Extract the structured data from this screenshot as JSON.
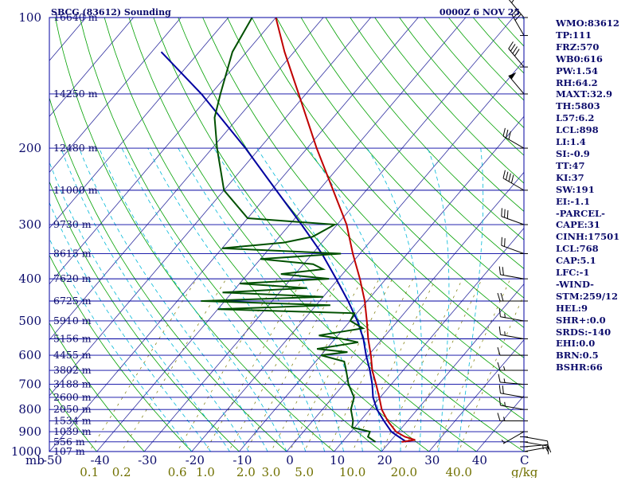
{
  "header": {
    "station": "SBCG (83612) Sounding",
    "datetime": "0000Z  6 NOV 25"
  },
  "chart_data": {
    "type": "line",
    "title": "SBCG (83612) Sounding",
    "subtitle": "0000Z  6 NOV 25",
    "pressure_unit_label": "mb",
    "temperature_unit_label": "C",
    "mixing_ratio_unit_label": "g/kg",
    "ylim": [
      1000,
      100
    ],
    "xlim": [
      -50,
      50
    ],
    "pressure_ticks": [
      100,
      200,
      300,
      400,
      500,
      600,
      700,
      800,
      900,
      1000
    ],
    "temperature_ticks": [
      -50,
      -40,
      -30,
      -20,
      -10,
      0,
      10,
      20,
      30,
      40
    ],
    "mixing_ratio_ticks": [
      "0.1",
      "0.2",
      "0.6",
      "1.0",
      "2.0",
      "3.0",
      "5.0",
      "10.0",
      "20.0",
      "40.0"
    ],
    "height_levels": [
      {
        "p": 100,
        "label": "16640 m"
      },
      {
        "p": 150,
        "label": "14250 m"
      },
      {
        "p": 200,
        "label": "12480 m"
      },
      {
        "p": 250,
        "label": "11000 m"
      },
      {
        "p": 300,
        "label": "9730 m"
      },
      {
        "p": 350,
        "label": "8615 m"
      },
      {
        "p": 400,
        "label": "7620 m"
      },
      {
        "p": 450,
        "label": "6725 m"
      },
      {
        "p": 500,
        "label": "5910 m"
      },
      {
        "p": 550,
        "label": "5156 m"
      },
      {
        "p": 600,
        "label": "4455 m"
      },
      {
        "p": 650,
        "label": "3802 m"
      },
      {
        "p": 700,
        "label": "3188 m"
      },
      {
        "p": 750,
        "label": "2600 m"
      },
      {
        "p": 800,
        "label": "2050 m"
      },
      {
        "p": 850,
        "label": "1534 m"
      },
      {
        "p": 900,
        "label": "1039 m"
      },
      {
        "p": 950,
        "label": "556 m"
      },
      {
        "p": 1000,
        "label": "107 m"
      }
    ],
    "series": [
      {
        "name": "Temperature",
        "color": "#c00000",
        "points": [
          {
            "p": 950,
            "t": 22.5
          },
          {
            "p": 940,
            "t": 25.0
          },
          {
            "p": 925,
            "t": 22.3
          },
          {
            "p": 900,
            "t": 19.5
          },
          {
            "p": 850,
            "t": 15.8
          },
          {
            "p": 800,
            "t": 12.5
          },
          {
            "p": 750,
            "t": 9.8
          },
          {
            "p": 700,
            "t": 6.8
          },
          {
            "p": 650,
            "t": 3.5
          },
          {
            "p": 600,
            "t": 0.5
          },
          {
            "p": 550,
            "t": -3.0
          },
          {
            "p": 500,
            "t": -6.5
          },
          {
            "p": 450,
            "t": -10.5
          },
          {
            "p": 400,
            "t": -15.5
          },
          {
            "p": 350,
            "t": -21.5
          },
          {
            "p": 300,
            "t": -28.0
          },
          {
            "p": 250,
            "t": -37.0
          },
          {
            "p": 200,
            "t": -48.0
          },
          {
            "p": 150,
            "t": -61.5
          },
          {
            "p": 120,
            "t": -72.0
          },
          {
            "p": 100,
            "t": -80.0
          }
        ]
      },
      {
        "name": "Dewpoint",
        "color": "#005000",
        "points": [
          {
            "p": 950,
            "t": 17.0
          },
          {
            "p": 925,
            "t": 14.5
          },
          {
            "p": 900,
            "t": 14.0
          },
          {
            "p": 880,
            "t": 9.5
          },
          {
            "p": 850,
            "t": 8.5
          },
          {
            "p": 800,
            "t": 6.0
          },
          {
            "p": 750,
            "t": 4.5
          },
          {
            "p": 700,
            "t": 1.0
          },
          {
            "p": 650,
            "t": -2.0
          },
          {
            "p": 620,
            "t": -4.0
          },
          {
            "p": 600,
            "t": -10.0
          },
          {
            "p": 590,
            "t": -5.0
          },
          {
            "p": 580,
            "t": -12.0
          },
          {
            "p": 560,
            "t": -4.5
          },
          {
            "p": 550,
            "t": -8.5
          },
          {
            "p": 540,
            "t": -14.0
          },
          {
            "p": 520,
            "t": -6.0
          },
          {
            "p": 500,
            "t": -10.0
          },
          {
            "p": 480,
            "t": -10.5
          },
          {
            "p": 470,
            "t": -40.0
          },
          {
            "p": 460,
            "t": -17.0
          },
          {
            "p": 450,
            "t": -45.0
          },
          {
            "p": 440,
            "t": -20.0
          },
          {
            "p": 430,
            "t": -42.0
          },
          {
            "p": 420,
            "t": -25.0
          },
          {
            "p": 410,
            "t": -40.0
          },
          {
            "p": 400,
            "t": -22.0
          },
          {
            "p": 390,
            "t": -33.0
          },
          {
            "p": 380,
            "t": -25.0
          },
          {
            "p": 370,
            "t": -28.0
          },
          {
            "p": 360,
            "t": -40.0
          },
          {
            "p": 350,
            "t": -24.0
          },
          {
            "p": 340,
            "t": -50.0
          },
          {
            "p": 330,
            "t": -38.0
          },
          {
            "p": 320,
            "t": -33.0
          },
          {
            "p": 300,
            "t": -30.5
          },
          {
            "p": 290,
            "t": -50.0
          },
          {
            "p": 250,
            "t": -60.0
          },
          {
            "p": 200,
            "t": -69.0
          },
          {
            "p": 170,
            "t": -75.0
          },
          {
            "p": 150,
            "t": -78.0
          },
          {
            "p": 120,
            "t": -83.0
          },
          {
            "p": 100,
            "t": -85.0
          }
        ]
      },
      {
        "name": "Parcel",
        "color": "#0000a0",
        "points": [
          {
            "p": 950,
            "t": 23.5
          },
          {
            "p": 925,
            "t": 21.0
          },
          {
            "p": 900,
            "t": 18.5
          },
          {
            "p": 850,
            "t": 15.0
          },
          {
            "p": 800,
            "t": 11.5
          },
          {
            "p": 750,
            "t": 8.5
          },
          {
            "p": 700,
            "t": 6.0
          },
          {
            "p": 650,
            "t": 3.0
          },
          {
            "p": 600,
            "t": -0.5
          },
          {
            "p": 550,
            "t": -4.0
          },
          {
            "p": 500,
            "t": -8.5
          },
          {
            "p": 450,
            "t": -14.0
          },
          {
            "p": 400,
            "t": -20.5
          },
          {
            "p": 350,
            "t": -28.0
          },
          {
            "p": 300,
            "t": -37.5
          },
          {
            "p": 250,
            "t": -49.0
          },
          {
            "p": 200,
            "t": -63.0
          },
          {
            "p": 150,
            "t": -82.0
          },
          {
            "p": 120,
            "t": -98.0
          }
        ]
      }
    ],
    "wind_barbs": [
      {
        "p": 1000,
        "dir": 80,
        "spd": 5
      },
      {
        "p": 975,
        "dir": 85,
        "spd": 10
      },
      {
        "p": 950,
        "dir": 100,
        "spd": 15
      },
      {
        "p": 925,
        "dir": 100,
        "spd": 10
      },
      {
        "p": 900,
        "dir": 240,
        "spd": 5
      },
      {
        "p": 850,
        "dir": 270,
        "spd": 15
      },
      {
        "p": 800,
        "dir": 280,
        "spd": 15
      },
      {
        "p": 750,
        "dir": 280,
        "spd": 20
      },
      {
        "p": 700,
        "dir": 275,
        "spd": 15
      },
      {
        "p": 650,
        "dir": 270,
        "spd": 15
      },
      {
        "p": 600,
        "dir": 270,
        "spd": 10
      },
      {
        "p": 550,
        "dir": 280,
        "spd": 15
      },
      {
        "p": 500,
        "dir": 280,
        "spd": 15
      },
      {
        "p": 450,
        "dir": 270,
        "spd": 20
      },
      {
        "p": 400,
        "dir": 280,
        "spd": 20
      },
      {
        "p": 350,
        "dir": 290,
        "spd": 20
      },
      {
        "p": 300,
        "dir": 290,
        "spd": 30
      },
      {
        "p": 250,
        "dir": 300,
        "spd": 40
      },
      {
        "p": 200,
        "dir": 300,
        "spd": 30
      },
      {
        "p": 150,
        "dir": 320,
        "spd": 50
      },
      {
        "p": 130,
        "dir": 320,
        "spd": 40
      },
      {
        "p": 110,
        "dir": 330,
        "spd": 30
      },
      {
        "p": 100,
        "dir": 320,
        "spd": 15
      }
    ]
  },
  "indices": [
    "WMO:83612",
    "TP:111",
    "FRZ:570",
    "WB0:616",
    "PW:1.54",
    "RH:64.2",
    "MAXT:32.9",
    "TH:5803",
    "L57:6.2",
    "LCL:898",
    "LI:1.4",
    "SI:-0.9",
    "TT:47",
    "KI:37",
    "SW:191",
    "EI:-1.1",
    "-PARCEL-",
    "CAPE:31",
    "CINH:17501",
    "LCL:768",
    "CAP:5.1",
    "LFC:-1",
    "-WIND-",
    "STM:259/12",
    "HEL:9",
    "SHR+:0.0",
    "SRDS:-140",
    "EHI:0.0",
    "BRN:0.5",
    "BSHR:66"
  ],
  "colors": {
    "isobar": "#0000a0",
    "isotherm": "#3030a0",
    "dry_adiabat": "#00a000",
    "moist_adiabat": "#00b8d8",
    "mixing_ratio": "#787800",
    "label_text": "#0b0b6b",
    "mixing_label_text": "#707000",
    "sidebar_text": "#0b0b6b"
  }
}
